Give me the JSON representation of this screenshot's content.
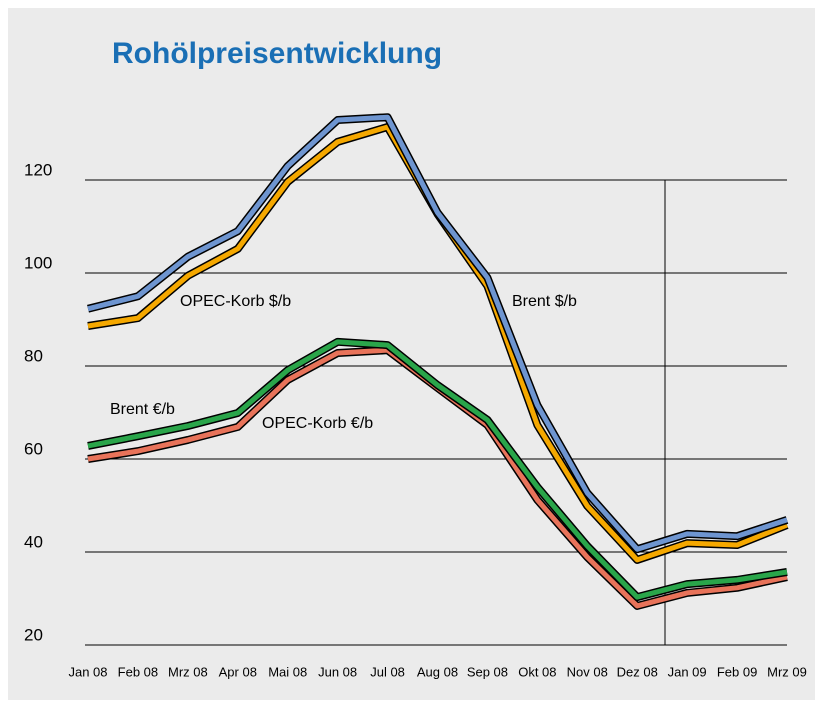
{
  "chart_data": {
    "type": "line",
    "title": "Rohölpreisentwicklung",
    "categories": [
      "Jan 08",
      "Feb 08",
      "Mrz 08",
      "Apr 08",
      "Mai 08",
      "Jun 08",
      "Jul 08",
      "Aug 08",
      "Sep 08",
      "Okt 08",
      "Nov 08",
      "Dez 08",
      "Jan 09",
      "Feb 09",
      "Mrz 09"
    ],
    "series": [
      {
        "name": "OPEC-Korb $/b",
        "color": "#f5a800",
        "values": [
          88.6,
          90.3,
          99.4,
          105.2,
          119.6,
          128.2,
          131.4,
          112.7,
          97.2,
          67.3,
          49.9,
          38.3,
          41.9,
          41.5,
          45.8
        ]
      },
      {
        "name": "Brent $/b",
        "color": "#6e95d0",
        "values": [
          92.3,
          95,
          103.5,
          109,
          123,
          132.9,
          133.5,
          113,
          99,
          71.6,
          52.7,
          40.6,
          43.9,
          43.4,
          46.9
        ]
      },
      {
        "name": "OPEC-Korb €/b",
        "color": "#e8735a",
        "values": [
          60,
          61.7,
          64.1,
          66.9,
          77,
          82.8,
          83.4,
          75.3,
          67.3,
          51.2,
          38.9,
          28.4,
          31.2,
          32.3,
          34.6
        ]
      },
      {
        "name": "Brent €/b",
        "color": "#2aa54a",
        "values": [
          62.8,
          64.9,
          67.1,
          69.9,
          79.1,
          85.2,
          84.5,
          75.9,
          68.4,
          54,
          41.3,
          30.3,
          33.1,
          34,
          35.7
        ]
      }
    ],
    "ylim": [
      20,
      140
    ],
    "yticks": [
      20,
      40,
      60,
      80,
      100,
      120
    ],
    "grid": true
  }
}
